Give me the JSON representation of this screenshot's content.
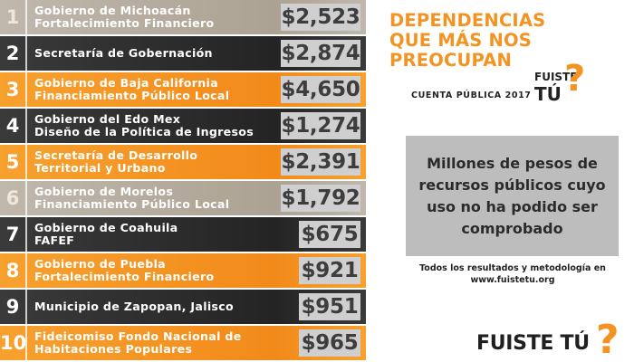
{
  "rows": [
    {
      "rank": "1",
      "line1": "Gobierno de Michoacán",
      "line2": "Fortalecimiento Financiero",
      "value": "$2,523",
      "color": "tan"
    },
    {
      "rank": "2",
      "line1": "Secretaría de Gobernación",
      "line2": "",
      "value": "$2,874",
      "color": "dark"
    },
    {
      "rank": "3",
      "line1": "Gobierno de Baja California",
      "line2": "Financiamiento Público Local",
      "value": "$4,650",
      "color": "orange"
    },
    {
      "rank": "4",
      "line1": "Gobierno del Edo Mex",
      "line2": "Diseño de la Política de Ingresos",
      "value": "$1,274",
      "color": "dark"
    },
    {
      "rank": "5",
      "line1": "Secretaría de Desarrollo",
      "line2": "Territorial y Urbano",
      "value": "$2,391",
      "color": "orange"
    },
    {
      "rank": "6",
      "line1": "Gobierno de Morelos",
      "line2": "Financiamiento Público Local",
      "value": "$1,792",
      "color": "tan"
    },
    {
      "rank": "7",
      "line1": "Gobierno de Coahuila",
      "line2": "FAFEF",
      "value": "$675",
      "color": "dark"
    },
    {
      "rank": "8",
      "line1": "Gobierno de Puebla",
      "line2": "Fortalecimiento Financiero",
      "value": "$921",
      "color": "orange"
    },
    {
      "rank": "9",
      "line1": "Municipio de Zapopan, Jalisco",
      "line2": "",
      "value": "$951",
      "color": "dark"
    },
    {
      "rank": "10",
      "line1": "Fideicomiso Fondo Nacional de",
      "line2": "Habitaciones Populares",
      "value": "$965",
      "color": "orange"
    }
  ],
  "title": {
    "line1": "DEPENDENCIAS",
    "line2": "QUE MÁS NOS",
    "line3": "PREOCUPAN"
  },
  "subtitle": "CUENTA PÚBLICA 2017",
  "logo_small": {
    "line1": "FUISTE",
    "line2": "TÚ",
    "mark": "?"
  },
  "box_text": "Millones de pesos de recursos públicos cuyo uso no ha podido ser comprobado",
  "note": {
    "line1": "Todos los  resultados y metodología en",
    "line2": "www.fuistetu.org"
  },
  "logo_big": {
    "text": "FUISTE TÚ",
    "mark": "?"
  },
  "colors": {
    "orange": "#f39322",
    "dark": "#2a2a2a",
    "tan": "#b3a99b",
    "value_box": "#cfcfcf"
  }
}
